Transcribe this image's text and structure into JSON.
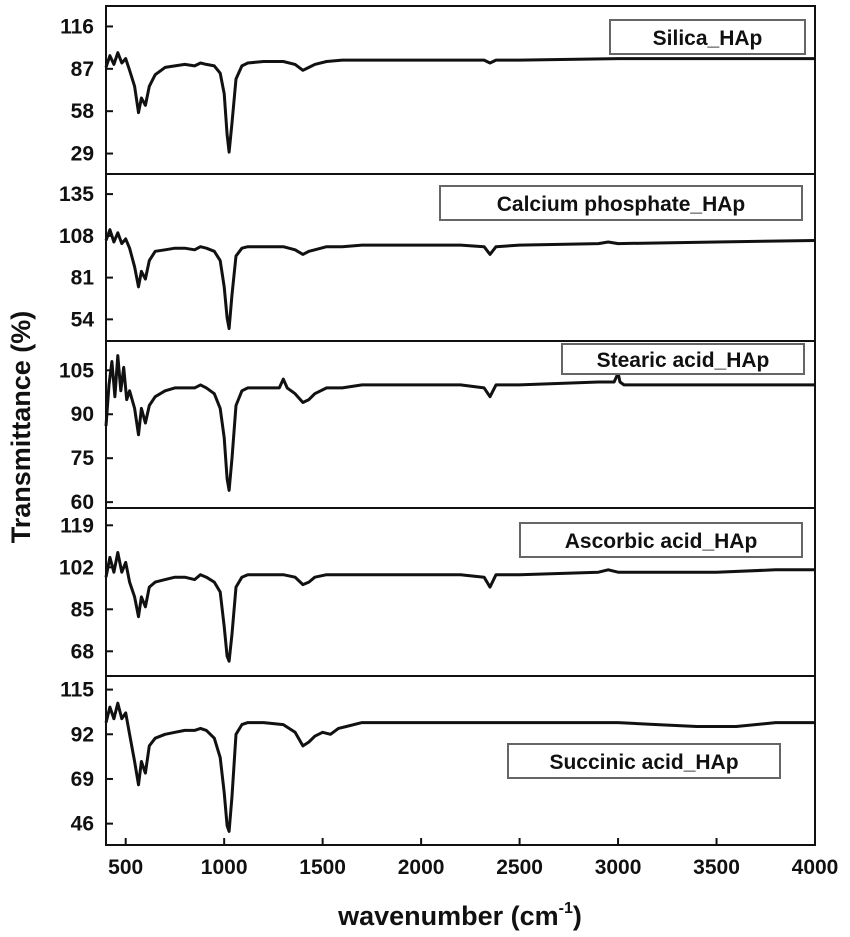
{
  "chart_data": {
    "type": "line",
    "xlabel": "wavenumber (cm",
    "xlabel_sup": "-1",
    "xlabel_close": ")",
    "ylabel": "Transmittance (%)",
    "xlim": [
      400,
      4000
    ],
    "xticks": [
      500,
      1000,
      1500,
      2000,
      2500,
      3000,
      3500,
      4000
    ],
    "legend_position": "top-right of each panel (bottom-right in last panel)",
    "colors": {
      "line": "#111111",
      "axes": "#111111",
      "legend_border": "#666666"
    },
    "panels": [
      {
        "series_name": "Silica_HAp",
        "ylim": [
          15,
          130
        ],
        "yticks": [
          "116",
          "87",
          "58",
          "29"
        ],
        "ytick_values": [
          116,
          87,
          58,
          29
        ],
        "x": [
          400,
          420,
          440,
          460,
          480,
          500,
          520,
          545,
          565,
          580,
          600,
          620,
          650,
          700,
          750,
          800,
          850,
          880,
          910,
          950,
          980,
          1000,
          1015,
          1025,
          1040,
          1060,
          1090,
          1120,
          1200,
          1300,
          1360,
          1400,
          1430,
          1460,
          1520,
          1600,
          1700,
          1800,
          2000,
          2200,
          2320,
          2350,
          2380,
          2500,
          3000,
          3500,
          4000
        ],
        "y": [
          88,
          96,
          90,
          98,
          91,
          94,
          86,
          75,
          57,
          67,
          62,
          75,
          83,
          88,
          89,
          90,
          89,
          91,
          90,
          89,
          84,
          70,
          42,
          30,
          50,
          80,
          89,
          91,
          92,
          92,
          90,
          86,
          88,
          90,
          92,
          93,
          93,
          93,
          93,
          93,
          93,
          91,
          93,
          93,
          94,
          94,
          94
        ]
      },
      {
        "series_name": "Calcium phosphate_HAp",
        "ylim": [
          40,
          148
        ],
        "yticks": [
          "135",
          "108",
          "81",
          "54"
        ],
        "ytick_values": [
          135,
          108,
          81,
          54
        ],
        "x": [
          400,
          420,
          440,
          460,
          480,
          500,
          520,
          545,
          565,
          580,
          600,
          620,
          650,
          700,
          750,
          800,
          850,
          880,
          910,
          950,
          980,
          1000,
          1015,
          1025,
          1040,
          1060,
          1090,
          1120,
          1200,
          1300,
          1360,
          1400,
          1430,
          1460,
          1520,
          1600,
          1700,
          1800,
          2000,
          2200,
          2320,
          2350,
          2380,
          2500,
          2900,
          2950,
          3000,
          3500,
          4000
        ],
        "y": [
          105,
          112,
          104,
          110,
          103,
          106,
          100,
          88,
          75,
          85,
          80,
          92,
          98,
          99,
          100,
          100,
          99,
          101,
          100,
          98,
          92,
          75,
          55,
          48,
          70,
          95,
          100,
          101,
          101,
          101,
          99,
          96,
          98,
          99,
          101,
          101,
          102,
          102,
          102,
          102,
          101,
          96,
          101,
          102,
          103,
          104,
          103,
          104,
          105
        ]
      },
      {
        "series_name": "Stearic acid_HAp",
        "ylim": [
          58,
          115
        ],
        "yticks": [
          "105",
          "90",
          "75",
          "60"
        ],
        "ytick_values": [
          105,
          90,
          75,
          60
        ],
        "x": [
          400,
          415,
          430,
          445,
          460,
          475,
          490,
          505,
          520,
          545,
          565,
          580,
          600,
          620,
          650,
          700,
          750,
          800,
          850,
          880,
          910,
          950,
          980,
          1000,
          1015,
          1025,
          1040,
          1060,
          1090,
          1120,
          1200,
          1280,
          1300,
          1320,
          1360,
          1400,
          1430,
          1460,
          1520,
          1600,
          1700,
          1800,
          2000,
          2200,
          2320,
          2350,
          2380,
          2500,
          2900,
          2980,
          3000,
          3010,
          3030,
          3500,
          4000
        ],
        "y": [
          86,
          100,
          108,
          96,
          110,
          98,
          106,
          95,
          98,
          92,
          83,
          92,
          87,
          93,
          96,
          98,
          99,
          99,
          99,
          100,
          99,
          97,
          92,
          82,
          68,
          64,
          75,
          93,
          98,
          99,
          99,
          99,
          102,
          99,
          97,
          94,
          95,
          97,
          99,
          99,
          100,
          100,
          100,
          100,
          99,
          96,
          100,
          100,
          101,
          101,
          104,
          101,
          100,
          100,
          100
        ]
      },
      {
        "series_name": "Ascorbic acid_HAp",
        "ylim": [
          58,
          126
        ],
        "yticks": [
          "119",
          "102",
          "85",
          "68"
        ],
        "ytick_values": [
          119,
          102,
          85,
          68
        ],
        "x": [
          400,
          420,
          440,
          460,
          480,
          500,
          520,
          545,
          565,
          580,
          600,
          620,
          650,
          700,
          750,
          800,
          850,
          880,
          910,
          950,
          980,
          1000,
          1015,
          1025,
          1040,
          1060,
          1090,
          1120,
          1200,
          1300,
          1360,
          1400,
          1430,
          1460,
          1520,
          1600,
          1700,
          1800,
          2000,
          2200,
          2320,
          2350,
          2380,
          2500,
          2900,
          2950,
          3000,
          3500,
          3800,
          4000
        ],
        "y": [
          98,
          106,
          100,
          108,
          100,
          104,
          96,
          90,
          82,
          90,
          86,
          94,
          96,
          97,
          98,
          98,
          97,
          99,
          98,
          96,
          92,
          78,
          66,
          64,
          75,
          94,
          98,
          99,
          99,
          99,
          98,
          95,
          96,
          98,
          99,
          99,
          99,
          99,
          99,
          99,
          98,
          94,
          99,
          99,
          100,
          101,
          100,
          100,
          101,
          101
        ]
      },
      {
        "series_name": "Succinic acid_HAp",
        "ylim": [
          35,
          122
        ],
        "yticks": [
          "115",
          "92",
          "69",
          "46"
        ],
        "ytick_values": [
          115,
          92,
          69,
          46
        ],
        "x": [
          400,
          420,
          440,
          460,
          480,
          500,
          520,
          545,
          565,
          580,
          600,
          620,
          650,
          700,
          750,
          800,
          850,
          880,
          910,
          950,
          980,
          1000,
          1015,
          1025,
          1040,
          1060,
          1090,
          1120,
          1200,
          1300,
          1360,
          1400,
          1430,
          1460,
          1500,
          1540,
          1580,
          1620,
          1700,
          1800,
          2000,
          2500,
          3000,
          3200,
          3400,
          3600,
          3800,
          4000
        ],
        "y": [
          98,
          106,
          100,
          108,
          100,
          103,
          92,
          78,
          66,
          78,
          72,
          86,
          90,
          92,
          93,
          94,
          94,
          95,
          94,
          90,
          80,
          62,
          45,
          42,
          60,
          92,
          97,
          98,
          98,
          97,
          93,
          86,
          88,
          91,
          93,
          92,
          95,
          96,
          98,
          98,
          98,
          98,
          98,
          97,
          96,
          96,
          98,
          98
        ]
      }
    ]
  }
}
